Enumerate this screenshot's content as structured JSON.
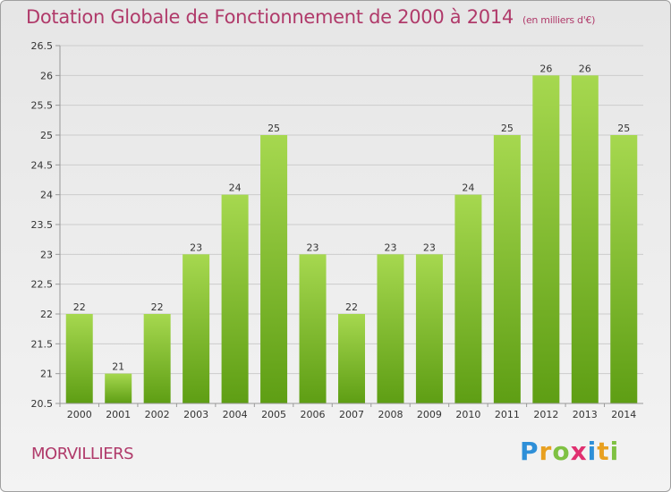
{
  "title": "Dotation Globale de Fonctionnement de 2000 à 2014",
  "subtitle": "(en milliers d'€)",
  "town": "MORVILLIERS",
  "brand": {
    "letters": [
      "P",
      "r",
      "o",
      "x",
      "i",
      "t",
      "i"
    ],
    "colors": [
      "#2e8fd8",
      "#e8a020",
      "#7fc142",
      "#e03070",
      "#2e8fd8",
      "#e8a020",
      "#7fc142"
    ]
  },
  "colors": {
    "bar_top": "#a6d84f",
    "bar_bottom": "#5e9e14",
    "grid": "#cccccc",
    "axis": "#999999",
    "title": "#b03a6a"
  },
  "chart_data": {
    "type": "bar",
    "categories": [
      "2000",
      "2001",
      "2002",
      "2003",
      "2004",
      "2005",
      "2006",
      "2007",
      "2008",
      "2009",
      "2010",
      "2011",
      "2012",
      "2013",
      "2014"
    ],
    "values": [
      22,
      21,
      22,
      23,
      24,
      25,
      23,
      22,
      23,
      23,
      24,
      25,
      26,
      26,
      25
    ],
    "data_labels": [
      "22",
      "21",
      "22",
      "23",
      "24",
      "25",
      "23",
      "22",
      "23",
      "23",
      "24",
      "25",
      "26",
      "26",
      "25"
    ],
    "yticks": [
      20.5,
      21,
      21.5,
      22,
      22.5,
      23,
      23.5,
      24,
      24.5,
      25,
      25.5,
      26,
      26.5
    ],
    "ylim": [
      20.5,
      26.5
    ],
    "grid": true,
    "title": "Dotation Globale de Fonctionnement de 2000 à 2014",
    "xlabel": "",
    "ylabel": ""
  }
}
